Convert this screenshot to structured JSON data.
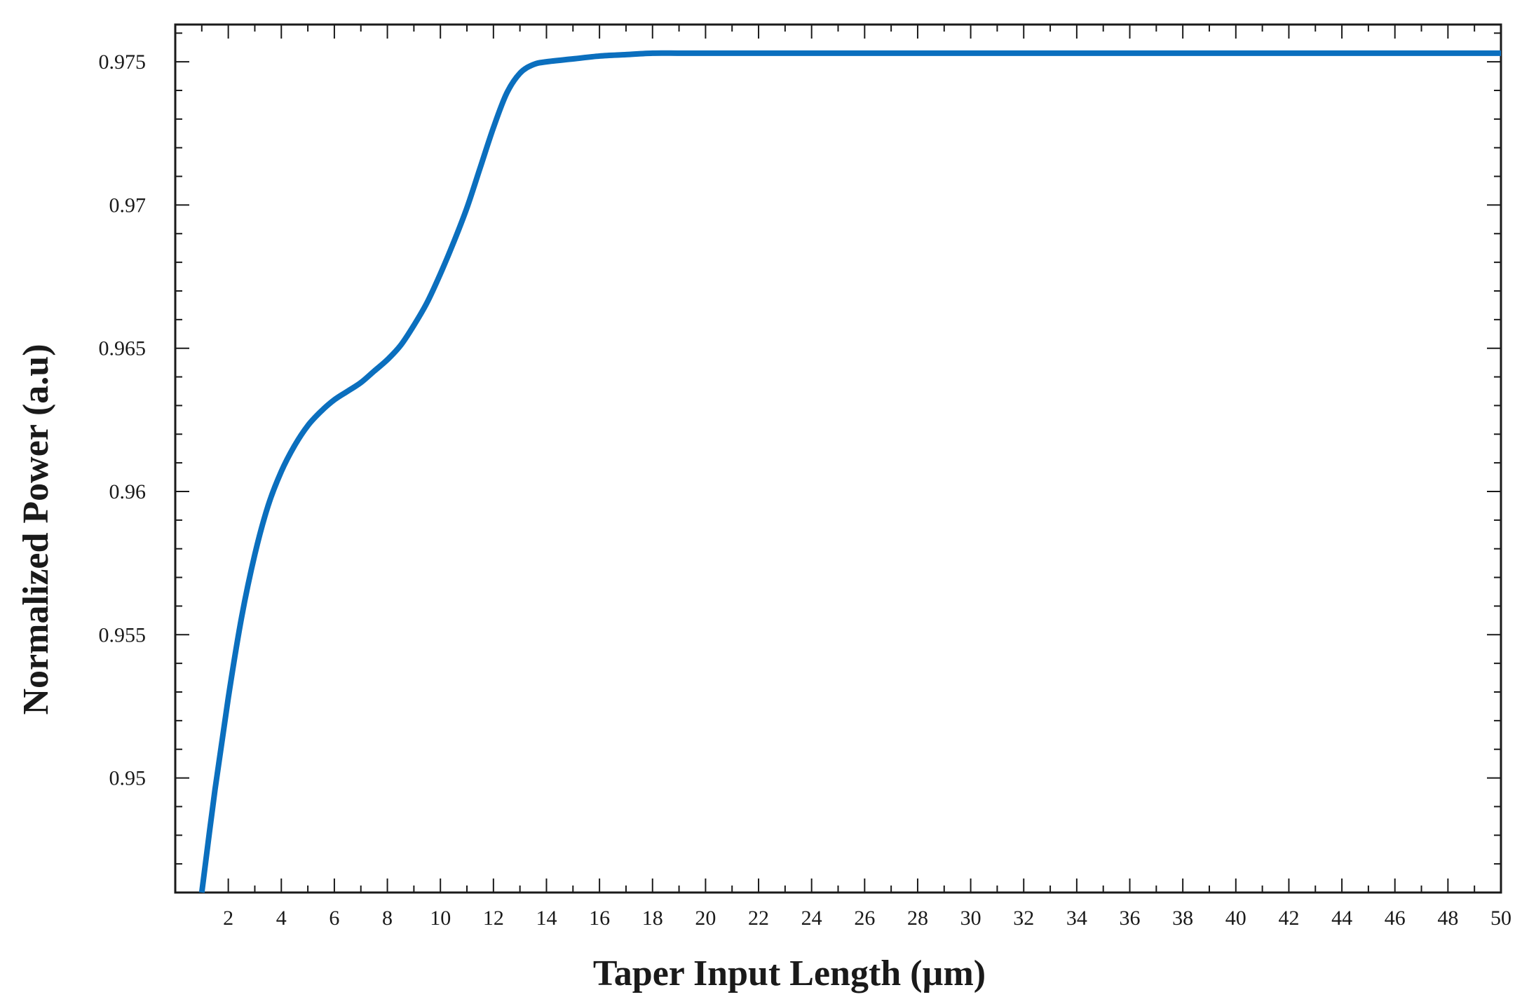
{
  "chart_data": {
    "type": "line",
    "xlabel": "Taper Input Length (µm)",
    "ylabel": "Normalized Power (a.u)",
    "xlim": [
      0,
      50
    ],
    "ylim": [
      0.946,
      0.9763
    ],
    "x_ticks": [
      2,
      4,
      6,
      8,
      10,
      12,
      14,
      16,
      18,
      20,
      22,
      24,
      26,
      28,
      30,
      32,
      34,
      36,
      38,
      40,
      42,
      44,
      46,
      48,
      50
    ],
    "x_tick_labels": [
      "2",
      "4",
      "6",
      "8",
      "10",
      "12",
      "14",
      "16",
      "18",
      "20",
      "22",
      "24",
      "26",
      "28",
      "30",
      "32",
      "34",
      "36",
      "38",
      "40",
      "42",
      "44",
      "46",
      "48",
      "50"
    ],
    "y_ticks": [
      0.95,
      0.955,
      0.96,
      0.965,
      0.97,
      0.975
    ],
    "y_tick_labels": [
      "0.95",
      "0.955",
      "0.96",
      "0.965",
      "0.97",
      "0.975"
    ],
    "grid": false,
    "series": [
      {
        "color": "#0b6fbe",
        "x": [
          1.0,
          1.5,
          2.0,
          2.5,
          3.0,
          3.5,
          4.0,
          4.5,
          5.0,
          5.5,
          6.0,
          6.5,
          7.0,
          7.5,
          8.0,
          8.5,
          9.0,
          9.5,
          10.0,
          10.5,
          11.0,
          11.5,
          12.0,
          12.5,
          13.0,
          13.5,
          14.0,
          15.0,
          16.0,
          17.0,
          18.0,
          19.0,
          20.0,
          25.0,
          30.0,
          35.0,
          40.0,
          45.0,
          50.0
        ],
        "y": [
          0.946,
          0.9496,
          0.9528,
          0.9556,
          0.9578,
          0.9595,
          0.9607,
          0.9616,
          0.9623,
          0.9628,
          0.9632,
          0.9635,
          0.9638,
          0.9642,
          0.9646,
          0.9651,
          0.9658,
          0.9666,
          0.9676,
          0.9687,
          0.9699,
          0.9713,
          0.9727,
          0.9739,
          0.9746,
          0.9749,
          0.975,
          0.9751,
          0.9752,
          0.97525,
          0.9753,
          0.9753,
          0.9753,
          0.9753,
          0.9753,
          0.9753,
          0.9753,
          0.9753,
          0.9753
        ]
      }
    ]
  }
}
